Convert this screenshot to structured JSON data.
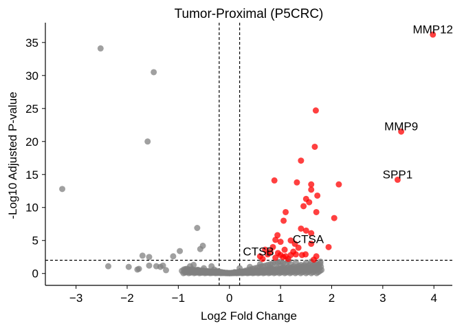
{
  "chart_data": {
    "type": "scatter",
    "title": "Tumor-Proximal (P5CRC)",
    "xlabel": "Log2 Fold Change",
    "ylabel": "-Log10 Adjusted P-value",
    "xlim": [
      -3.6,
      4.36
    ],
    "ylim": [
      -1.8,
      38
    ],
    "xticks": [
      -3,
      -2,
      -1,
      0,
      1,
      2,
      3,
      4
    ],
    "yticks": [
      0,
      5,
      10,
      15,
      20,
      25,
      30,
      35
    ],
    "thresholds": {
      "log2fc": [
        -0.2,
        0.2
      ],
      "neg_log10_padj": 2.0
    },
    "grid": false,
    "colors": {
      "significant": "#ff0000",
      "nonsignificant": "#808080",
      "threshold_line": "#000000"
    },
    "series": [
      {
        "color": "#808080",
        "points": [
          [
            -3.27,
            12.8
          ],
          [
            -2.52,
            34.1
          ],
          [
            -2.37,
            1.1
          ],
          [
            -1.97,
            1.0
          ],
          [
            -1.8,
            0.6
          ],
          [
            -1.77,
            0.7
          ],
          [
            -1.7,
            2.7
          ],
          [
            -1.6,
            20.0
          ],
          [
            -1.57,
            2.5
          ],
          [
            -1.57,
            1.2
          ],
          [
            -1.48,
            30.5
          ],
          [
            -1.43,
            1.1
          ],
          [
            -1.35,
            1.0
          ],
          [
            -1.3,
            1.2
          ],
          [
            -1.24,
            0.5
          ],
          [
            -1.1,
            2.6
          ],
          [
            -0.97,
            3.4
          ],
          [
            -0.93,
            0.4
          ],
          [
            -0.77,
            1.1
          ],
          [
            -0.7,
            1.3
          ],
          [
            -0.63,
            6.9
          ],
          [
            -0.57,
            3.7
          ],
          [
            -0.52,
            4.2
          ],
          [
            -0.45,
            0.3
          ],
          [
            -0.4,
            0.2
          ],
          [
            -0.35,
            1.1
          ],
          [
            -0.3,
            0.6
          ],
          [
            -0.25,
            0.4
          ],
          [
            -0.2,
            0.3
          ],
          [
            -0.15,
            0.2
          ],
          [
            -0.1,
            0.1
          ],
          [
            -0.05,
            0.1
          ],
          [
            0.0,
            0.05
          ],
          [
            0.05,
            0.1
          ],
          [
            0.1,
            0.2
          ],
          [
            0.15,
            0.2
          ],
          [
            0.2,
            0.3
          ],
          [
            0.25,
            0.3
          ],
          [
            0.3,
            0.4
          ],
          [
            0.35,
            0.5
          ],
          [
            0.4,
            0.6
          ],
          [
            0.45,
            0.7
          ],
          [
            0.5,
            0.8
          ],
          [
            0.55,
            0.9
          ],
          [
            0.6,
            1.0
          ],
          [
            0.65,
            1.1
          ],
          [
            0.7,
            1.2
          ],
          [
            0.75,
            1.3
          ],
          [
            0.8,
            1.4
          ],
          [
            0.85,
            1.5
          ],
          [
            0.9,
            1.6
          ],
          [
            0.95,
            1.7
          ],
          [
            1.0,
            1.8
          ],
          [
            1.05,
            1.6
          ],
          [
            1.1,
            1.5
          ],
          [
            1.2,
            1.4
          ],
          [
            1.3,
            1.7
          ],
          [
            1.4,
            1.3
          ],
          [
            1.5,
            1.6
          ],
          [
            1.6,
            1.8
          ],
          [
            1.7,
            1.5
          ],
          [
            1.78,
            1.8
          ],
          [
            -0.6,
            0.5
          ],
          [
            -0.5,
            0.8
          ],
          [
            0.2,
            0.8
          ],
          [
            0.4,
            1.0
          ],
          [
            0.6,
            1.4
          ],
          [
            0.8,
            0.9
          ],
          [
            1.0,
            1.2
          ],
          [
            1.15,
            1.9
          ]
        ]
      },
      {
        "color": "#ff0000",
        "points": [
          [
            3.98,
            36.2
          ],
          [
            3.36,
            21.5
          ],
          [
            3.29,
            14.2
          ],
          [
            1.69,
            24.7
          ],
          [
            1.67,
            19.2
          ],
          [
            1.4,
            17.1
          ],
          [
            0.88,
            14.1
          ],
          [
            1.32,
            13.8
          ],
          [
            1.6,
            13.5
          ],
          [
            2.14,
            13.5
          ],
          [
            1.6,
            12.7
          ],
          [
            1.72,
            11.8
          ],
          [
            1.5,
            11.3
          ],
          [
            1.56,
            10.8
          ],
          [
            1.45,
            10.2
          ],
          [
            1.1,
            9.3
          ],
          [
            1.7,
            9.3
          ],
          [
            1.06,
            8.0
          ],
          [
            2.05,
            8.4
          ],
          [
            1.4,
            6.8
          ],
          [
            1.5,
            6.5
          ],
          [
            0.94,
            5.8
          ],
          [
            1.6,
            6.1
          ],
          [
            0.9,
            5.1
          ],
          [
            1.2,
            5.0
          ],
          [
            1.28,
            4.5
          ],
          [
            1.6,
            4.5
          ],
          [
            1.94,
            4.0
          ],
          [
            1.0,
            4.8
          ],
          [
            0.85,
            4.0
          ],
          [
            0.8,
            3.3
          ],
          [
            0.75,
            2.9
          ],
          [
            0.6,
            2.6
          ],
          [
            0.65,
            2.2
          ],
          [
            0.7,
            3.6
          ],
          [
            0.9,
            2.4
          ],
          [
            1.0,
            2.8
          ],
          [
            1.05,
            2.5
          ],
          [
            1.1,
            2.6
          ],
          [
            1.15,
            2.2
          ],
          [
            1.2,
            2.8
          ],
          [
            1.3,
            2.9
          ],
          [
            1.42,
            2.8
          ],
          [
            1.49,
            2.9
          ],
          [
            1.7,
            2.6
          ],
          [
            1.65,
            2.1
          ],
          [
            0.95,
            3.1
          ],
          [
            1.08,
            3.6
          ],
          [
            1.25,
            3.3
          ],
          [
            1.35,
            3.9
          ]
        ]
      }
    ],
    "annotations": [
      {
        "text": "MMP12",
        "x": 3.98,
        "y": 36.2
      },
      {
        "text": "MMP9",
        "x": 3.36,
        "y": 21.5
      },
      {
        "text": "SPP1",
        "x": 3.29,
        "y": 14.2
      },
      {
        "text": "CTSA",
        "x": 1.22,
        "y": 4.4
      },
      {
        "text": "CTSB",
        "x": 0.22,
        "y": 2.5
      }
    ]
  }
}
